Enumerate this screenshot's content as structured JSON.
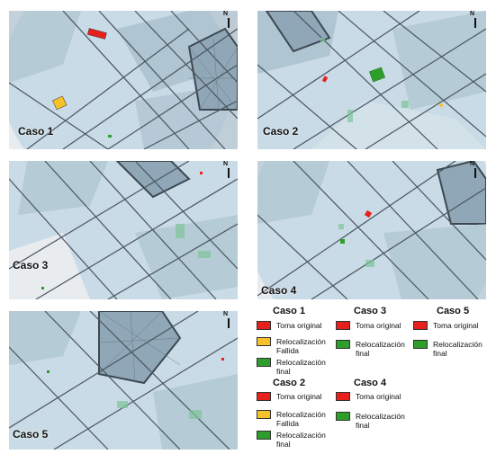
{
  "panels": [
    {
      "label": "Caso 1"
    },
    {
      "label": "Caso 2"
    },
    {
      "label": "Caso 3"
    },
    {
      "label": "Caso 4"
    },
    {
      "label": "Caso 5"
    }
  ],
  "north_label": "N",
  "legend": {
    "caso1": {
      "title": "Caso 1",
      "items": [
        "Toma original",
        "Relocalización Fallida",
        "Relocalización final"
      ]
    },
    "caso2": {
      "title": "Caso 2",
      "items": [
        "Toma original",
        "Relocalización Fallida",
        "Relocalización final"
      ]
    },
    "caso3": {
      "title": "Caso 3",
      "items": [
        "Toma original",
        "Relocalización final"
      ]
    },
    "caso4": {
      "title": "Caso 4",
      "items": [
        "Toma original",
        "Relocalización final"
      ]
    },
    "caso5": {
      "title": "Caso 5",
      "items": [
        "Toma original",
        "Relocalización final"
      ]
    }
  },
  "colors": {
    "toma_original": "#e8201c",
    "relocalizacion_fallida": "#f6c12a",
    "relocalizacion_final": "#2e9e2a",
    "map_background": "#c9dbe6",
    "block_fill": "#a9bfcc",
    "street": "#4a5560"
  }
}
